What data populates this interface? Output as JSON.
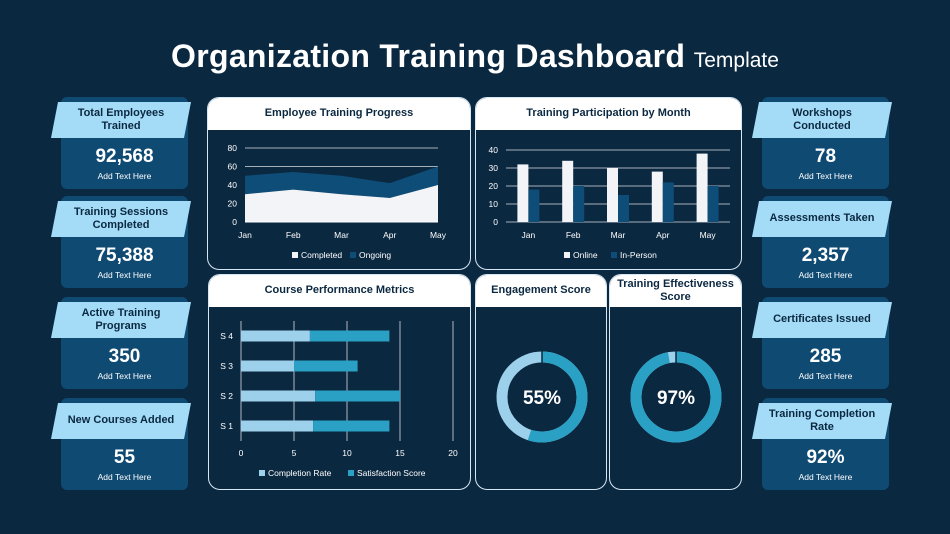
{
  "title": {
    "main": "Organization Training Dashboard",
    "sub": "Template"
  },
  "left_kpis": [
    {
      "label": "Total Employees Trained",
      "value": "92,568",
      "note": "Add Text Here"
    },
    {
      "label": "Training Sessions Completed",
      "value": "75,388",
      "note": "Add Text Here"
    },
    {
      "label": "Active Training Programs",
      "value": "350",
      "note": "Add Text Here"
    },
    {
      "label": "New Courses Added",
      "value": "55",
      "note": "Add Text Here"
    }
  ],
  "right_kpis": [
    {
      "label": "Workshops Conducted",
      "value": "78",
      "note": "Add Text Here"
    },
    {
      "label": "Assessments Taken",
      "value": "2,357",
      "note": "Add Text Here"
    },
    {
      "label": "Certificates Issued",
      "value": "285",
      "note": "Add Text Here"
    },
    {
      "label": "Training Completion Rate",
      "value": "92%",
      "note": "Add Text Here"
    }
  ],
  "panels": {
    "progress": "Employee Training Progress",
    "participation": "Training Participation by Month",
    "course": "Course Performance Metrics",
    "engagement": "Engagement Score",
    "effectiveness": "Training Effectiveness Score"
  },
  "colors": {
    "background": "#0b2841",
    "kpi_body": "#0f4a73",
    "kpi_label": "#a4dcf8",
    "light_series": "#f2f4f7",
    "dark_series": "#0e4d78",
    "light_blue": "#9dd0ea",
    "teal": "#2aa0c4"
  },
  "chart_data": [
    {
      "type": "area",
      "title": "Employee Training Progress",
      "categories": [
        "Jan",
        "Feb",
        "Mar",
        "Apr",
        "May"
      ],
      "series": [
        {
          "name": "Completed",
          "values": [
            30,
            35,
            30,
            26,
            40
          ]
        },
        {
          "name": "Ongoing",
          "values": [
            20,
            19,
            20,
            16,
            20
          ]
        }
      ],
      "stacked": true,
      "ylim": [
        0,
        80
      ],
      "yticks": [
        0,
        20,
        40,
        60,
        80
      ],
      "grid": true,
      "legend": "bottom"
    },
    {
      "type": "bar",
      "title": "Training Participation by Month",
      "categories": [
        "Jan",
        "Feb",
        "Mar",
        "Apr",
        "May"
      ],
      "series": [
        {
          "name": "Online",
          "values": [
            32,
            34,
            30,
            28,
            38
          ]
        },
        {
          "name": "In-Person",
          "values": [
            18,
            20,
            15,
            22,
            20
          ]
        }
      ],
      "ylim": [
        0,
        40
      ],
      "yticks": [
        0,
        10,
        20,
        30,
        40
      ],
      "legend": "bottom"
    },
    {
      "type": "bar",
      "orientation": "horizontal",
      "stacked": true,
      "title": "Course Performance Metrics",
      "categories": [
        "S 1",
        "S 2",
        "S 3",
        "S 4"
      ],
      "series": [
        {
          "name": "Completion Rate",
          "values": [
            6.8,
            7,
            5,
            6.5
          ]
        },
        {
          "name": "Satisfaction Score",
          "values": [
            7.2,
            8,
            6,
            7.5
          ]
        }
      ],
      "xlim": [
        0,
        20
      ],
      "xticks": [
        0,
        5,
        10,
        15,
        20
      ],
      "grid": true,
      "legend": "bottom"
    },
    {
      "type": "pie",
      "title": "Engagement Score",
      "value": 55,
      "label": "55%"
    },
    {
      "type": "pie",
      "title": "Training Effectiveness Score",
      "value": 97,
      "label": "97%"
    }
  ]
}
